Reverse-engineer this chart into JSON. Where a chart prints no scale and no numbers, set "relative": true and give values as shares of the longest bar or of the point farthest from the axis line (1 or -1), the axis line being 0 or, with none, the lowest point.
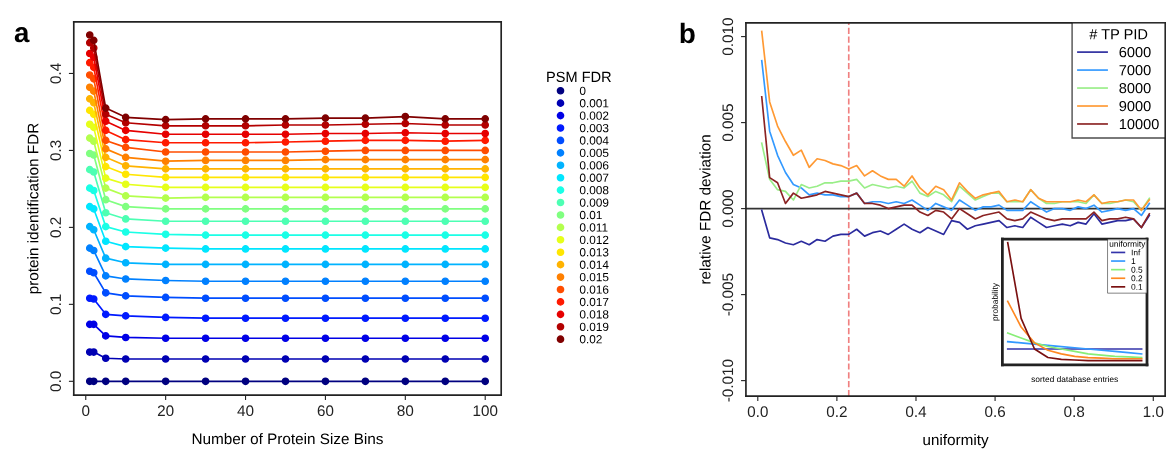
{
  "chart_data": [
    {
      "type": "line",
      "xlabel": "Number of Protein Size Bins",
      "ylabel": "protein identification FDR",
      "legend_title": "PSM FDR",
      "legend": "right",
      "marker": "circle",
      "line_style": "solid",
      "annotations": [
        "a"
      ],
      "x": [
        1,
        2,
        5,
        10,
        20,
        30,
        40,
        50,
        60,
        70,
        80,
        90,
        100
      ],
      "xlim": [
        -3,
        104
      ],
      "xticks": [
        0,
        20,
        40,
        60,
        80,
        100
      ],
      "ylim": [
        -0.018,
        0.467
      ],
      "yticks": [
        {
          "value": 0,
          "label": "0.0"
        },
        {
          "value": 0.1,
          "label": "0.1"
        },
        {
          "value": 0.2,
          "label": "0.2"
        },
        {
          "value": 0.3,
          "label": "0.3"
        },
        {
          "value": 0.4,
          "label": "0.4"
        }
      ],
      "series": [
        {
          "name": "0",
          "color": "#000080",
          "values": [
            0,
            0,
            0,
            0,
            0,
            0,
            0,
            0,
            0,
            0,
            0,
            0,
            0
          ]
        },
        {
          "name": "0.001",
          "color": "#0000b3",
          "values": [
            0.038,
            0.038,
            0.03,
            0.029,
            0.029,
            0.029,
            0.029,
            0.029,
            0.029,
            0.029,
            0.029,
            0.029,
            0.029
          ]
        },
        {
          "name": "0.002",
          "color": "#0000e6",
          "values": [
            0.074,
            0.074,
            0.059,
            0.057,
            0.056,
            0.056,
            0.056,
            0.056,
            0.056,
            0.056,
            0.056,
            0.056,
            0.056
          ]
        },
        {
          "name": "0.003",
          "color": "#001aff",
          "values": [
            0.108,
            0.107,
            0.087,
            0.085,
            0.083,
            0.082,
            0.082,
            0.082,
            0.082,
            0.082,
            0.082,
            0.082,
            0.082
          ]
        },
        {
          "name": "0.004",
          "color": "#004dff",
          "values": [
            0.143,
            0.141,
            0.115,
            0.111,
            0.109,
            0.108,
            0.108,
            0.108,
            0.108,
            0.108,
            0.108,
            0.108,
            0.108
          ]
        },
        {
          "name": "0.005",
          "color": "#0080ff",
          "values": [
            0.173,
            0.17,
            0.137,
            0.133,
            0.131,
            0.13,
            0.13,
            0.13,
            0.13,
            0.13,
            0.13,
            0.13,
            0.13
          ]
        },
        {
          "name": "0.006",
          "color": "#00b3ff",
          "values": [
            0.201,
            0.197,
            0.16,
            0.154,
            0.152,
            0.152,
            0.152,
            0.152,
            0.152,
            0.152,
            0.152,
            0.152,
            0.152
          ]
        },
        {
          "name": "0.007",
          "color": "#00e6ff",
          "values": [
            0.227,
            0.224,
            0.182,
            0.175,
            0.173,
            0.172,
            0.172,
            0.172,
            0.172,
            0.172,
            0.172,
            0.172,
            0.172
          ]
        },
        {
          "name": "0.008",
          "color": "#1affe6",
          "values": [
            0.251,
            0.248,
            0.201,
            0.194,
            0.191,
            0.19,
            0.19,
            0.19,
            0.19,
            0.19,
            0.19,
            0.19,
            0.19
          ]
        },
        {
          "name": "0.009",
          "color": "#4dffb3",
          "values": [
            0.275,
            0.272,
            0.219,
            0.211,
            0.208,
            0.208,
            0.208,
            0.208,
            0.208,
            0.208,
            0.208,
            0.208,
            0.208
          ]
        },
        {
          "name": "0.01",
          "color": "#80ff80",
          "values": [
            0.296,
            0.294,
            0.236,
            0.227,
            0.224,
            0.224,
            0.224,
            0.224,
            0.224,
            0.224,
            0.224,
            0.224,
            0.224
          ]
        },
        {
          "name": "0.011",
          "color": "#b3ff4d",
          "values": [
            0.316,
            0.312,
            0.251,
            0.241,
            0.238,
            0.239,
            0.239,
            0.239,
            0.239,
            0.239,
            0.239,
            0.239,
            0.239
          ]
        },
        {
          "name": "0.012",
          "color": "#e6ff1a",
          "values": [
            0.334,
            0.33,
            0.264,
            0.256,
            0.252,
            0.252,
            0.252,
            0.252,
            0.252,
            0.252,
            0.252,
            0.252,
            0.252
          ]
        },
        {
          "name": "0.013",
          "color": "#ffe600",
          "values": [
            0.352,
            0.347,
            0.279,
            0.269,
            0.265,
            0.265,
            0.265,
            0.265,
            0.265,
            0.265,
            0.265,
            0.265,
            0.265
          ]
        },
        {
          "name": "0.014",
          "color": "#ffb300",
          "values": [
            0.367,
            0.362,
            0.291,
            0.28,
            0.276,
            0.276,
            0.276,
            0.276,
            0.276,
            0.276,
            0.276,
            0.276,
            0.276
          ]
        },
        {
          "name": "0.015",
          "color": "#ff8000",
          "values": [
            0.382,
            0.377,
            0.302,
            0.291,
            0.286,
            0.287,
            0.287,
            0.287,
            0.288,
            0.288,
            0.288,
            0.288,
            0.288
          ]
        },
        {
          "name": "0.016",
          "color": "#ff4d00",
          "values": [
            0.398,
            0.393,
            0.313,
            0.304,
            0.298,
            0.298,
            0.298,
            0.298,
            0.299,
            0.3,
            0.3,
            0.3,
            0.3
          ]
        },
        {
          "name": "0.017",
          "color": "#ff1a00",
          "values": [
            0.414,
            0.408,
            0.326,
            0.314,
            0.31,
            0.31,
            0.31,
            0.311,
            0.312,
            0.313,
            0.313,
            0.312,
            0.313
          ]
        },
        {
          "name": "0.018",
          "color": "#e60000",
          "values": [
            0.426,
            0.421,
            0.338,
            0.326,
            0.321,
            0.321,
            0.321,
            0.321,
            0.322,
            0.322,
            0.323,
            0.322,
            0.322
          ]
        },
        {
          "name": "0.019",
          "color": "#b30000",
          "values": [
            0.44,
            0.433,
            0.347,
            0.336,
            0.332,
            0.332,
            0.332,
            0.333,
            0.333,
            0.334,
            0.335,
            0.333,
            0.333
          ]
        },
        {
          "name": "0.02",
          "color": "#800000",
          "values": [
            0.45,
            0.443,
            0.355,
            0.343,
            0.34,
            0.341,
            0.341,
            0.341,
            0.342,
            0.342,
            0.344,
            0.341,
            0.341
          ]
        }
      ]
    },
    {
      "type": "line",
      "xlabel": "uniformity",
      "ylabel": "relative FDR deviation",
      "legend_title": "# TP PID",
      "legend": "top right",
      "line_style": "solid",
      "annotations": [
        "b"
      ],
      "x": [
        0.01,
        0.03,
        0.05,
        0.07,
        0.09,
        0.11,
        0.13,
        0.15,
        0.17,
        0.19,
        0.21,
        0.23,
        0.25,
        0.27,
        0.29,
        0.31,
        0.33,
        0.35,
        0.37,
        0.39,
        0.41,
        0.43,
        0.45,
        0.47,
        0.49,
        0.51,
        0.53,
        0.55,
        0.57,
        0.59,
        0.61,
        0.63,
        0.65,
        0.67,
        0.69,
        0.71,
        0.73,
        0.75,
        0.77,
        0.79,
        0.81,
        0.83,
        0.85,
        0.87,
        0.89,
        0.91,
        0.93,
        0.95,
        0.97,
        0.99
      ],
      "xlim": [
        -0.03,
        1.03
      ],
      "xticks": [
        {
          "value": 0,
          "label": "0.0"
        },
        {
          "value": 0.2,
          "label": "0.2"
        },
        {
          "value": 0.4,
          "label": "0.4"
        },
        {
          "value": 0.6,
          "label": "0.6"
        },
        {
          "value": 0.8,
          "label": "0.8"
        },
        {
          "value": 1,
          "label": "1.0"
        }
      ],
      "ylim": [
        -0.0109,
        0.0108
      ],
      "yticks": [
        {
          "value": -0.01,
          "label": "-0.010"
        },
        {
          "value": -0.005,
          "label": "-0.005"
        },
        {
          "value": 0,
          "label": "0.000"
        },
        {
          "value": 0.005,
          "label": "0.005"
        },
        {
          "value": 0.01,
          "label": "0.010"
        }
      ],
      "ref_lines": [
        {
          "axis": "x",
          "value": 0.23,
          "color": "#f08080",
          "line_style": "dashed"
        },
        {
          "axis": "y",
          "value": 0,
          "color": "#333333",
          "line_style": "solid"
        }
      ],
      "series": [
        {
          "name": "6000",
          "color": "#2b2b9e",
          "values": [
            -0.0001,
            -0.0017,
            -0.0018,
            -0.002,
            -0.0021,
            -0.0019,
            -0.0021,
            -0.0018,
            -0.0019,
            -0.0016,
            -0.0015,
            -0.0015,
            -0.0012,
            -0.0016,
            -0.0014,
            -0.0013,
            -0.0015,
            -0.0012,
            -0.0009,
            -0.0012,
            -0.0014,
            -0.0011,
            -0.0013,
            -0.0015,
            -0.0007,
            -0.0008,
            -0.0012,
            -0.001,
            -0.0009,
            -0.0008,
            -0.0007,
            -0.0011,
            -0.001,
            -0.0011,
            -0.0005,
            -0.0008,
            -0.0011,
            -0.001,
            -0.0009,
            -0.001,
            -0.0008,
            -0.0009,
            -0.0003,
            -0.0009,
            -0.0008,
            -0.0007,
            -0.0007,
            -0.0006,
            -0.0011,
            -0.0004
          ]
        },
        {
          "name": "7000",
          "color": "#3399ff",
          "values": [
            0.0086,
            0.0045,
            0.0031,
            0.0021,
            0.0014,
            0.0012,
            0.0008,
            0.0009,
            0.0008,
            0.0008,
            0.0007,
            0.0007,
            0.0009,
            0.0003,
            0.0004,
            0.0004,
            0.0003,
            0.0004,
            0.0003,
            0.0005,
            0.0002,
            -0.0001,
            0.0003,
            0.0001,
            -0.0001,
            0.0005,
            0.0002,
            -0.0001,
            0.0001,
            0.0001,
            0.0002,
            -0.0001,
            -0.0001,
            -0.0001,
            0.0004,
            0.0001,
            -0.0002,
            0.0,
            0.0,
            -0.0001,
            0.0001,
            0.0,
            0.0002,
            -0.0002,
            -0.0001,
            0.0,
            -0.0001,
            0.0,
            -0.0004,
            0.0003
          ]
        },
        {
          "name": "8000",
          "color": "#99ee88",
          "values": [
            0.0038,
            0.0017,
            0.0011,
            0.001,
            0.0005,
            0.0014,
            0.0012,
            0.0013,
            0.0015,
            0.0015,
            0.0016,
            0.0016,
            0.0017,
            0.0012,
            0.0014,
            0.0013,
            0.0012,
            0.0013,
            0.0012,
            0.0016,
            0.0009,
            0.0007,
            0.001,
            0.0008,
            0.0004,
            0.0013,
            0.0009,
            0.0005,
            0.0007,
            0.0009,
            0.0009,
            0.0004,
            0.0004,
            0.0004,
            0.0011,
            0.0006,
            0.0003,
            0.0003,
            0.0004,
            0.0004,
            0.0004,
            0.0003,
            0.0008,
            0.0003,
            0.0003,
            0.0004,
            0.0005,
            0.0004,
            -0.0001,
            0.0006
          ]
        },
        {
          "name": "9000",
          "color": "#ff9933",
          "values": [
            0.0103,
            0.0062,
            0.0048,
            0.0039,
            0.0031,
            0.0034,
            0.0024,
            0.0029,
            0.0028,
            0.0026,
            0.0025,
            0.0023,
            0.0025,
            0.0019,
            0.0022,
            0.0019,
            0.0017,
            0.0017,
            0.0013,
            0.0019,
            0.0012,
            0.0008,
            0.0013,
            0.0011,
            0.0005,
            0.0015,
            0.001,
            0.0006,
            0.0008,
            0.0009,
            0.001,
            0.0004,
            0.0005,
            0.0004,
            0.0011,
            0.0006,
            0.0004,
            0.0004,
            0.0004,
            0.0004,
            0.0005,
            0.0004,
            0.0008,
            0.0003,
            0.0004,
            0.0004,
            0.0005,
            0.0005,
            -0.0001,
            0.0005
          ]
        },
        {
          "name": "10000",
          "color": "#8b2323",
          "values": [
            0.0065,
            0.0018,
            0.0015,
            0.0003,
            0.0009,
            0.0006,
            0.0007,
            0.0008,
            0.001,
            0.0009,
            0.0008,
            0.0007,
            0.0009,
            0.0003,
            0.0003,
            0.0002,
            0.0,
            0.0001,
            0.0002,
            0.0002,
            -0.0002,
            -0.0004,
            -0.0001,
            -0.0002,
            -0.0006,
            0.0,
            -0.0003,
            -0.0006,
            -0.0004,
            -0.0003,
            -0.0002,
            -0.0006,
            -0.0007,
            -0.0006,
            -0.0002,
            -0.0004,
            -0.0006,
            -0.0007,
            -0.0006,
            -0.0006,
            -0.0006,
            -0.0006,
            -0.0002,
            -0.0007,
            -0.0006,
            -0.0006,
            -0.0005,
            -0.0006,
            -0.0011,
            -0.0003
          ]
        }
      ]
    },
    {
      "type": "line",
      "relative": true,
      "xlabel": "sorted database entries",
      "ylabel": "probability",
      "legend_title": "uniformity",
      "legend": "top right",
      "line_style": "solid",
      "tick_labels": false,
      "categories": [
        null,
        null,
        null,
        null,
        null,
        null,
        null,
        null,
        null,
        null,
        null
      ],
      "series": [
        {
          "name": "Inf",
          "color": "#3333aa",
          "values": [
            0.13,
            0.13,
            0.13,
            0.13,
            0.13,
            0.13,
            0.13,
            0.13,
            0.13,
            0.13,
            0.13
          ]
        },
        {
          "name": "1",
          "color": "#3399ff",
          "values": [
            0.19,
            0.18,
            0.17,
            0.16,
            0.15,
            0.14,
            0.13,
            0.12,
            0.11,
            0.1,
            0.09
          ]
        },
        {
          "name": "0.5",
          "color": "#88ee77",
          "values": [
            0.26,
            0.22,
            0.18,
            0.15,
            0.13,
            0.11,
            0.09,
            0.08,
            0.07,
            0.065,
            0.06
          ]
        },
        {
          "name": "0.2",
          "color": "#ff8822",
          "values": [
            0.52,
            0.31,
            0.18,
            0.12,
            0.09,
            0.07,
            0.06,
            0.055,
            0.05,
            0.05,
            0.05
          ]
        },
        {
          "name": "0.1",
          "color": "#7a1010",
          "values": [
            1.0,
            0.38,
            0.13,
            0.06,
            0.045,
            0.04,
            0.035,
            0.035,
            0.035,
            0.035,
            0.035
          ]
        }
      ]
    }
  ]
}
